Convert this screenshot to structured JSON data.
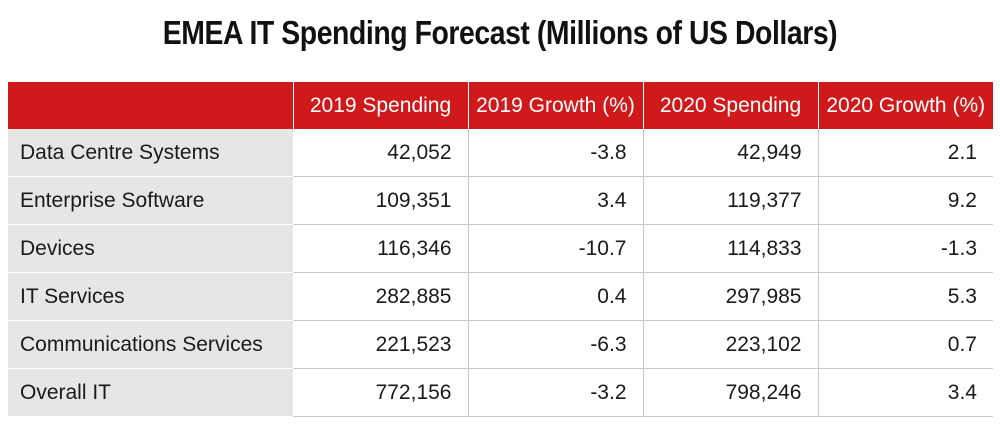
{
  "chart_data": {
    "type": "table",
    "title": "EMEA IT Spending Forecast (Millions of US Dollars)",
    "columns": [
      "",
      "2019 Spending",
      "2019 Growth (%)",
      "2020 Spending",
      "2020 Growth (%)"
    ],
    "rows": [
      {
        "label": "Data Centre Systems",
        "values": [
          "42,052",
          "-3.8",
          "42,949",
          "2.1"
        ]
      },
      {
        "label": "Enterprise Software",
        "values": [
          "109,351",
          "3.4",
          "119,377",
          "9.2"
        ]
      },
      {
        "label": "Devices",
        "values": [
          "116,346",
          "-10.7",
          "114,833",
          "-1.3"
        ]
      },
      {
        "label": "IT Services",
        "values": [
          "282,885",
          "0.4",
          "297,985",
          "5.3"
        ]
      },
      {
        "label": "Communications Services",
        "values": [
          "221,523",
          "-6.3",
          "223,102",
          "0.7"
        ]
      },
      {
        "label": "Overall IT",
        "values": [
          "772,156",
          "-3.2",
          "798,246",
          "3.4"
        ]
      }
    ]
  },
  "colors": {
    "header_background": "#d0191b",
    "header_text": "#ffffff",
    "label_background": "#e6e6e6",
    "grid_line": "#c9c9c9"
  }
}
